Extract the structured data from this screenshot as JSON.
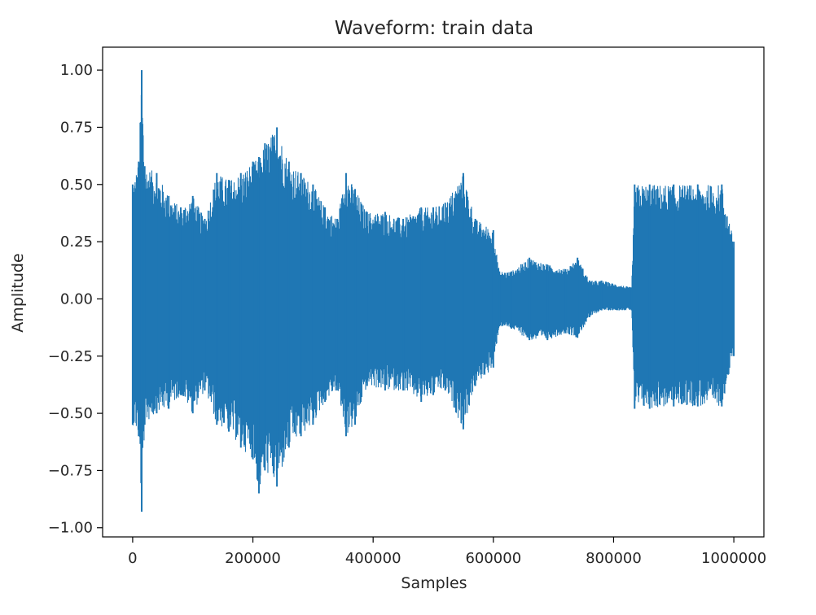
{
  "chart_data": {
    "type": "line",
    "title": "Waveform: train data",
    "xlabel": "Samples",
    "ylabel": "Amplitude",
    "xlim": [
      -50000,
      1050000
    ],
    "ylim": [
      -1.04,
      1.1
    ],
    "x_ticks": [
      0,
      200000,
      400000,
      600000,
      800000,
      1000000
    ],
    "x_tick_labels": [
      "0",
      "200000",
      "400000",
      "600000",
      "800000",
      "1000000"
    ],
    "y_ticks": [
      1.0,
      0.75,
      0.5,
      0.25,
      0.0,
      -0.25,
      -0.5,
      -0.75,
      -1.0
    ],
    "y_tick_labels": [
      "1.00",
      "0.75",
      "0.50",
      "0.25",
      "0.00",
      "−0.25",
      "−0.50",
      "−0.75",
      "−1.00"
    ],
    "grid": false,
    "line_color": "#1f77b4",
    "series": [
      {
        "envelope": {
          "x": [
            0,
            10000,
            15000,
            20000,
            40000,
            60000,
            80000,
            100000,
            120000,
            140000,
            160000,
            180000,
            200000,
            210000,
            220000,
            240000,
            260000,
            280000,
            300000,
            320000,
            340000,
            355000,
            370000,
            390000,
            420000,
            450000,
            480000,
            500000,
            520000,
            550000,
            570000,
            600000,
            610000,
            630000,
            660000,
            690000,
            720000,
            740000,
            760000,
            780000,
            830000,
            835000,
            860000,
            900000,
            940000,
            980000,
            1000000
          ],
          "upper": [
            0.5,
            0.6,
            1.0,
            0.58,
            0.55,
            0.45,
            0.4,
            0.45,
            0.35,
            0.55,
            0.52,
            0.55,
            0.6,
            0.62,
            0.68,
            0.75,
            0.6,
            0.55,
            0.5,
            0.4,
            0.35,
            0.55,
            0.48,
            0.38,
            0.38,
            0.35,
            0.4,
            0.4,
            0.42,
            0.55,
            0.35,
            0.3,
            0.12,
            0.12,
            0.18,
            0.15,
            0.13,
            0.18,
            0.08,
            0.08,
            0.05,
            0.5,
            0.5,
            0.5,
            0.5,
            0.5,
            0.25
          ],
          "lower": [
            -0.55,
            -0.6,
            -0.93,
            -0.55,
            -0.5,
            -0.48,
            -0.42,
            -0.5,
            -0.4,
            -0.55,
            -0.58,
            -0.65,
            -0.7,
            -0.85,
            -0.75,
            -0.82,
            -0.65,
            -0.6,
            -0.55,
            -0.45,
            -0.4,
            -0.6,
            -0.55,
            -0.38,
            -0.4,
            -0.4,
            -0.45,
            -0.42,
            -0.4,
            -0.57,
            -0.38,
            -0.3,
            -0.12,
            -0.13,
            -0.18,
            -0.18,
            -0.15,
            -0.17,
            -0.08,
            -0.05,
            -0.05,
            -0.48,
            -0.48,
            -0.47,
            -0.47,
            -0.47,
            -0.25
          ]
        }
      }
    ]
  }
}
